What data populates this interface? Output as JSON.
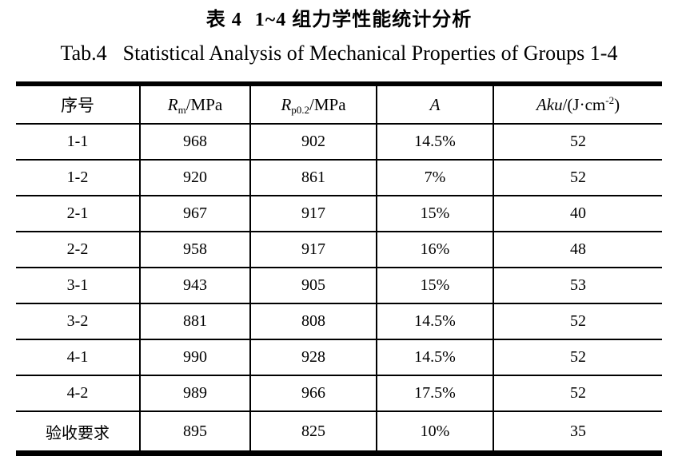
{
  "page": {
    "background_color": "#ffffff",
    "text_color": "#000000",
    "border_color": "#000000"
  },
  "caption_zh": {
    "label": "表 4",
    "text": "1~4 组力学性能统计分析"
  },
  "caption_en": {
    "label": "Tab.4",
    "text": "Statistical Analysis of Mechanical Properties of Groups 1-4"
  },
  "table": {
    "headers": {
      "col1": "序号",
      "col2": {
        "symbol": "R",
        "sub": "m",
        "unit": "/MPa"
      },
      "col3": {
        "symbol": "R",
        "sub": "p0.2",
        "unit": "/MPa"
      },
      "col4": {
        "symbol": "A"
      },
      "col5": {
        "symbol": "Aku",
        "unit_pre": "/(J·cm",
        "sup": "-2",
        "unit_post": ")"
      }
    },
    "rows": [
      {
        "id": "1-1",
        "rm": "968",
        "rp02": "902",
        "a": "14.5%",
        "aku": "52"
      },
      {
        "id": "1-2",
        "rm": "920",
        "rp02": "861",
        "a": "7%",
        "aku": "52"
      },
      {
        "id": "2-1",
        "rm": "967",
        "rp02": "917",
        "a": "15%",
        "aku": "40"
      },
      {
        "id": "2-2",
        "rm": "958",
        "rp02": "917",
        "a": "16%",
        "aku": "48"
      },
      {
        "id": "3-1",
        "rm": "943",
        "rp02": "905",
        "a": "15%",
        "aku": "53"
      },
      {
        "id": "3-2",
        "rm": "881",
        "rp02": "808",
        "a": "14.5%",
        "aku": "52"
      },
      {
        "id": "4-1",
        "rm": "990",
        "rp02": "928",
        "a": "14.5%",
        "aku": "52"
      },
      {
        "id": "4-2",
        "rm": "989",
        "rp02": "966",
        "a": "17.5%",
        "aku": "52"
      },
      {
        "id": "验收要求",
        "rm": "895",
        "rp02": "825",
        "a": "10%",
        "aku": "35"
      }
    ]
  }
}
